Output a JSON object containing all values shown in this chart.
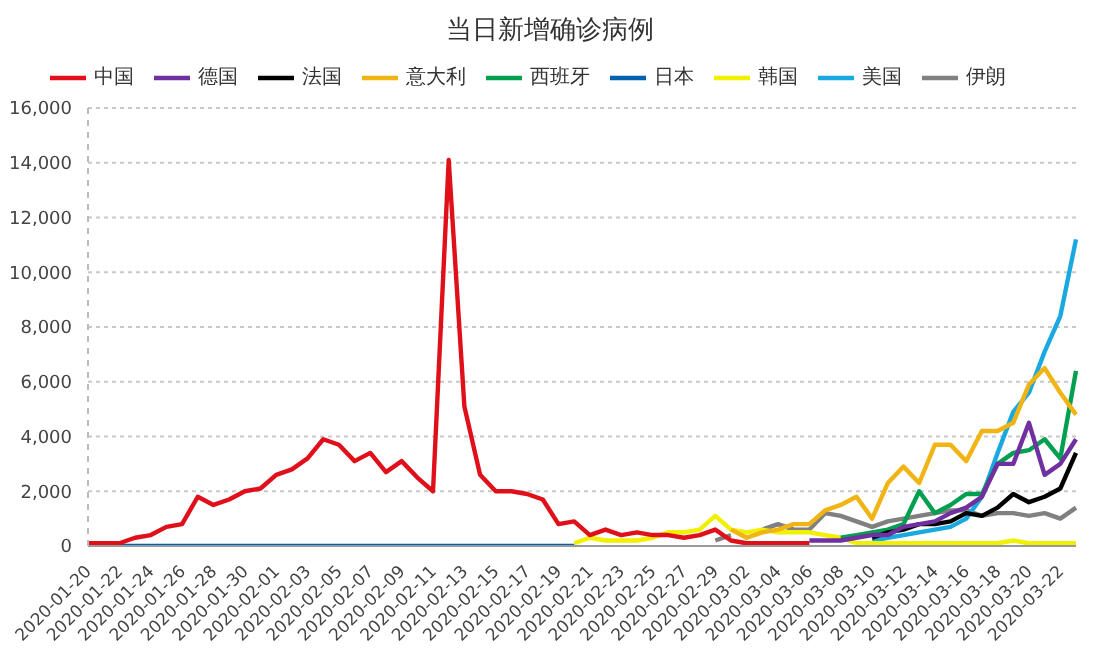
{
  "chart_data": {
    "type": "line",
    "title": "当日新增确诊病例",
    "legend": "top",
    "grid": "y",
    "ylim": [
      0,
      16000
    ],
    "yticks": [
      0,
      {
        "value": 2000,
        "label": "2,000"
      },
      {
        "value": 4000,
        "label": "4,000"
      },
      {
        "value": 6000,
        "label": "6,000"
      },
      {
        "value": 8000,
        "label": "8,000"
      },
      {
        "value": 10000,
        "label": "10,000"
      },
      {
        "value": 12000,
        "label": "12,000"
      },
      {
        "value": 14000,
        "label": "14,000"
      },
      {
        "value": 16000,
        "label": "16,000"
      }
    ],
    "categories": [
      "2020-01-20",
      null,
      "2020-01-22",
      null,
      "2020-01-24",
      null,
      "2020-01-26",
      null,
      "2020-01-28",
      null,
      "2020-01-30",
      null,
      "2020-02-01",
      null,
      "2020-02-03",
      null,
      "2020-02-05",
      null,
      "2020-02-07",
      null,
      "2020-02-09",
      null,
      "2020-02-11",
      null,
      "2020-02-13",
      null,
      "2020-02-15",
      null,
      "2020-02-17",
      null,
      "2020-02-19",
      null,
      "2020-02-21",
      null,
      "2020-02-23",
      null,
      "2020-02-25",
      null,
      "2020-02-27",
      null,
      "2020-02-29",
      null,
      "2020-03-02",
      null,
      "2020-03-04",
      null,
      "2020-03-06",
      null,
      "2020-03-08",
      null,
      "2020-03-10",
      null,
      "2020-03-12",
      null,
      "2020-03-14",
      null,
      "2020-03-16",
      null,
      "2020-03-18",
      null,
      "2020-03-20",
      null,
      "2020-03-22",
      null
    ],
    "series": [
      {
        "name": "中国",
        "color": "#e0101a",
        "values": [
          100,
          100,
          100,
          300,
          400,
          700,
          800,
          1800,
          1500,
          1700,
          2000,
          2100,
          2600,
          2800,
          3200,
          3900,
          3700,
          3100,
          3400,
          2700,
          3100,
          2500,
          2000,
          14100,
          5100,
          2600,
          2000,
          2000,
          1900,
          1700,
          800,
          900,
          400,
          600,
          400,
          500,
          400,
          400,
          300,
          400,
          600,
          200,
          100,
          100,
          100,
          100,
          100,
          null,
          null,
          null,
          null,
          null,
          null,
          null,
          null,
          null,
          null,
          null,
          null,
          null,
          null,
          null,
          null,
          null
        ]
      },
      {
        "name": "德国",
        "color": "#7030a0",
        "values": [
          null,
          null,
          null,
          null,
          null,
          null,
          null,
          null,
          null,
          null,
          null,
          null,
          null,
          null,
          null,
          null,
          null,
          null,
          null,
          null,
          null,
          null,
          null,
          null,
          null,
          null,
          null,
          null,
          null,
          null,
          null,
          null,
          null,
          null,
          null,
          null,
          null,
          null,
          null,
          null,
          null,
          null,
          null,
          null,
          null,
          null,
          200,
          200,
          200,
          300,
          400,
          400,
          700,
          800,
          900,
          1200,
          1400,
          1800,
          3000,
          3000,
          4500,
          2600,
          3000,
          3900
        ]
      },
      {
        "name": "法国",
        "color": "#000000",
        "values": [
          null,
          null,
          null,
          null,
          null,
          null,
          null,
          null,
          null,
          null,
          null,
          null,
          null,
          null,
          null,
          null,
          null,
          null,
          null,
          null,
          null,
          null,
          null,
          null,
          null,
          null,
          null,
          null,
          null,
          null,
          null,
          null,
          null,
          null,
          null,
          null,
          null,
          null,
          null,
          null,
          null,
          null,
          null,
          null,
          null,
          null,
          null,
          null,
          null,
          null,
          300,
          500,
          600,
          800,
          800,
          900,
          1200,
          1100,
          1400,
          1900,
          1600,
          1800,
          2100,
          3400
        ]
      },
      {
        "name": "意大利",
        "color": "#f0b414",
        "values": [
          null,
          null,
          null,
          null,
          null,
          null,
          null,
          null,
          null,
          null,
          null,
          null,
          null,
          null,
          null,
          null,
          null,
          null,
          null,
          null,
          null,
          null,
          null,
          null,
          null,
          null,
          null,
          null,
          null,
          null,
          null,
          null,
          null,
          null,
          null,
          null,
          null,
          null,
          null,
          null,
          null,
          600,
          300,
          500,
          600,
          800,
          800,
          1300,
          1500,
          1800,
          1000,
          2300,
          2900,
          2300,
          3700,
          3700,
          3100,
          4200,
          4200,
          4500,
          5900,
          6500,
          5600,
          4800
        ]
      },
      {
        "name": "西班牙",
        "color": "#00a050",
        "values": [
          null,
          null,
          null,
          null,
          null,
          null,
          null,
          null,
          null,
          null,
          null,
          null,
          null,
          null,
          null,
          null,
          null,
          null,
          null,
          null,
          null,
          null,
          null,
          null,
          null,
          null,
          null,
          null,
          null,
          null,
          null,
          null,
          null,
          null,
          null,
          null,
          null,
          null,
          null,
          null,
          null,
          null,
          null,
          null,
          null,
          null,
          null,
          null,
          300,
          400,
          500,
          600,
          800,
          2000,
          1200,
          1500,
          1900,
          1900,
          3000,
          3400,
          3500,
          3900,
          3200,
          6400
        ]
      },
      {
        "name": "日本",
        "color": "#0060b0",
        "values": [
          0,
          0,
          0,
          0,
          0,
          0,
          0,
          0,
          0,
          0,
          0,
          0,
          0,
          0,
          0,
          0,
          0,
          0,
          0,
          0,
          0,
          0,
          0,
          0,
          0,
          0,
          0,
          0,
          0,
          0,
          0,
          0,
          null,
          null,
          null,
          null,
          null,
          null,
          null,
          null,
          null,
          null,
          null,
          null,
          null,
          null,
          null,
          null,
          null,
          null,
          null,
          null,
          null,
          null,
          null,
          null,
          null,
          null,
          null,
          null,
          null,
          null,
          null,
          null
        ]
      },
      {
        "name": "韩国",
        "color": "#f0f000",
        "values": [
          null,
          null,
          null,
          null,
          null,
          null,
          null,
          null,
          null,
          null,
          null,
          null,
          null,
          null,
          null,
          null,
          null,
          null,
          null,
          null,
          null,
          null,
          null,
          null,
          null,
          null,
          null,
          null,
          null,
          null,
          null,
          100,
          300,
          200,
          200,
          200,
          300,
          500,
          500,
          600,
          1100,
          600,
          500,
          600,
          500,
          500,
          500,
          400,
          300,
          100,
          100,
          100,
          100,
          100,
          100,
          100,
          100,
          100,
          100,
          200,
          100,
          100,
          100,
          100
        ]
      },
      {
        "name": "美国",
        "color": "#1aa8e0",
        "values": [
          null,
          null,
          null,
          null,
          null,
          null,
          null,
          null,
          null,
          null,
          null,
          null,
          null,
          null,
          null,
          null,
          null,
          null,
          null,
          null,
          null,
          null,
          null,
          null,
          null,
          null,
          null,
          null,
          null,
          null,
          null,
          null,
          null,
          null,
          null,
          null,
          null,
          null,
          null,
          null,
          null,
          null,
          null,
          null,
          null,
          null,
          null,
          null,
          null,
          null,
          200,
          300,
          400,
          500,
          600,
          700,
          1000,
          1800,
          3400,
          4900,
          5600,
          7100,
          8400,
          11200
        ]
      },
      {
        "name": "伊朗",
        "color": "#808080",
        "values": [
          null,
          null,
          null,
          null,
          null,
          null,
          null,
          null,
          null,
          null,
          null,
          null,
          null,
          null,
          null,
          null,
          null,
          null,
          null,
          null,
          null,
          null,
          null,
          null,
          null,
          null,
          null,
          null,
          null,
          null,
          null,
          null,
          null,
          null,
          null,
          null,
          null,
          null,
          null,
          null,
          200,
          400,
          null,
          600,
          800,
          600,
          600,
          1200,
          1100,
          900,
          700,
          900,
          1000,
          1100,
          1200,
          1300,
          1300,
          1100,
          1200,
          1200,
          1100,
          1200,
          1000,
          1400
        ]
      }
    ]
  }
}
